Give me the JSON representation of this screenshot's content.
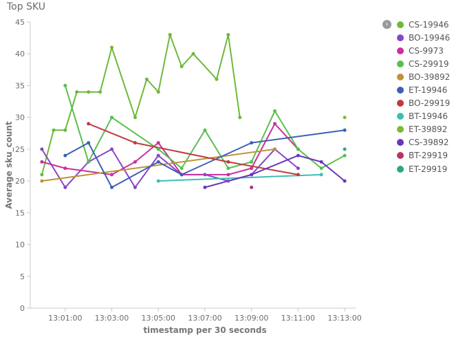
{
  "title": "Top SKU",
  "legend_toggle_icon": "chevron-right-icon",
  "chart_data": {
    "type": "line",
    "xlabel": "timestamp per 30 seconds",
    "ylabel": "Average sku_count",
    "ylim": [
      0,
      45
    ],
    "yticks": [
      0,
      5,
      10,
      15,
      20,
      25,
      30,
      35,
      40,
      45
    ],
    "xlim": [
      "12:59:30",
      "13:13:30"
    ],
    "xticks": [
      "13:01:00",
      "13:03:00",
      "13:05:00",
      "13:07:00",
      "13:09:00",
      "13:11:00",
      "13:13:00"
    ],
    "grid": false,
    "legend_position": "right",
    "series": [
      {
        "name": "CS-19946",
        "color": "#6DB93A",
        "points": [
          [
            "13:00:00",
            21
          ],
          [
            "13:00:30",
            28
          ],
          [
            "13:01:00",
            28
          ],
          [
            "13:01:30",
            34
          ],
          [
            "13:02:00",
            34
          ],
          [
            "13:02:30",
            34
          ],
          [
            "13:03:00",
            41
          ],
          [
            "13:04:00",
            30
          ],
          [
            "13:04:30",
            36
          ],
          [
            "13:05:00",
            34
          ],
          [
            "13:05:30",
            43
          ],
          [
            "13:06:00",
            38
          ],
          [
            "13:06:30",
            40
          ],
          [
            "13:07:30",
            36
          ],
          [
            "13:08:00",
            43
          ],
          [
            "13:08:30",
            30
          ]
        ]
      },
      {
        "name": "BO-19946",
        "color": "#8845C7",
        "points": [
          [
            "13:00:00",
            25
          ],
          [
            "13:01:00",
            19
          ],
          [
            "13:02:00",
            23
          ],
          [
            "13:03:00",
            25
          ],
          [
            "13:04:00",
            19
          ],
          [
            "13:05:00",
            24
          ],
          [
            "13:06:00",
            21
          ],
          [
            "13:07:00",
            21
          ],
          [
            "13:08:00",
            20
          ],
          [
            "13:09:00",
            21
          ],
          [
            "13:10:00",
            25
          ],
          [
            "13:11:00",
            22
          ]
        ]
      },
      {
        "name": "CS-9973",
        "color": "#C8309E",
        "points": [
          [
            "13:00:00",
            23
          ],
          [
            "13:01:00",
            22
          ],
          [
            "13:03:00",
            21
          ],
          [
            "13:04:00",
            23
          ],
          [
            "13:05:00",
            26
          ],
          [
            "13:06:00",
            21
          ],
          [
            "13:08:00",
            21
          ],
          [
            "13:09:00",
            22
          ],
          [
            "13:10:00",
            29
          ],
          [
            "13:11:00",
            25
          ]
        ]
      },
      {
        "name": "CS-29919",
        "color": "#57C04E",
        "points": [
          [
            "13:01:00",
            35
          ],
          [
            "13:02:00",
            23
          ],
          [
            "13:03:00",
            30
          ],
          [
            "13:05:00",
            25
          ],
          [
            "13:06:00",
            22
          ],
          [
            "13:07:00",
            28
          ],
          [
            "13:08:00",
            22
          ],
          [
            "13:09:00",
            23
          ],
          [
            "13:10:00",
            31
          ],
          [
            "13:11:00",
            25
          ],
          [
            "13:12:00",
            22
          ],
          [
            "13:13:00",
            24
          ]
        ]
      },
      {
        "name": "BO-39892",
        "color": "#BE9337",
        "points": [
          [
            "13:00:00",
            20
          ],
          [
            "13:10:00",
            25
          ]
        ]
      },
      {
        "name": "ET-19946",
        "color": "#3D5FB5",
        "points": [
          [
            "13:01:00",
            24
          ],
          [
            "13:02:00",
            26
          ],
          [
            "13:03:00",
            19
          ],
          [
            "13:05:00",
            23
          ],
          [
            "13:06:00",
            21
          ],
          [
            "13:09:00",
            26
          ],
          [
            "13:13:00",
            28
          ]
        ]
      },
      {
        "name": "BO-29919",
        "color": "#C13A3C",
        "points": [
          [
            "13:02:00",
            29
          ],
          [
            "13:04:00",
            26
          ],
          [
            "13:08:00",
            23
          ],
          [
            "13:11:00",
            21
          ]
        ]
      },
      {
        "name": "BT-19946",
        "color": "#3DBEB5",
        "points": [
          [
            "13:05:00",
            20
          ],
          [
            "13:12:00",
            21
          ]
        ]
      },
      {
        "name": "ET-39892",
        "color": "#7DBB36",
        "points": [
          [
            "13:13:00",
            30
          ]
        ]
      },
      {
        "name": "CS-39892",
        "color": "#6A35BE",
        "points": [
          [
            "13:07:00",
            19
          ],
          [
            "13:09:00",
            21
          ],
          [
            "13:11:00",
            24
          ],
          [
            "13:12:00",
            23
          ],
          [
            "13:13:00",
            20
          ]
        ]
      },
      {
        "name": "BT-29919",
        "color": "#B8336A",
        "points": [
          [
            "13:09:00",
            19
          ]
        ]
      },
      {
        "name": "ET-29919",
        "color": "#2EA87A",
        "points": [
          [
            "13:13:00",
            25
          ]
        ]
      }
    ]
  }
}
